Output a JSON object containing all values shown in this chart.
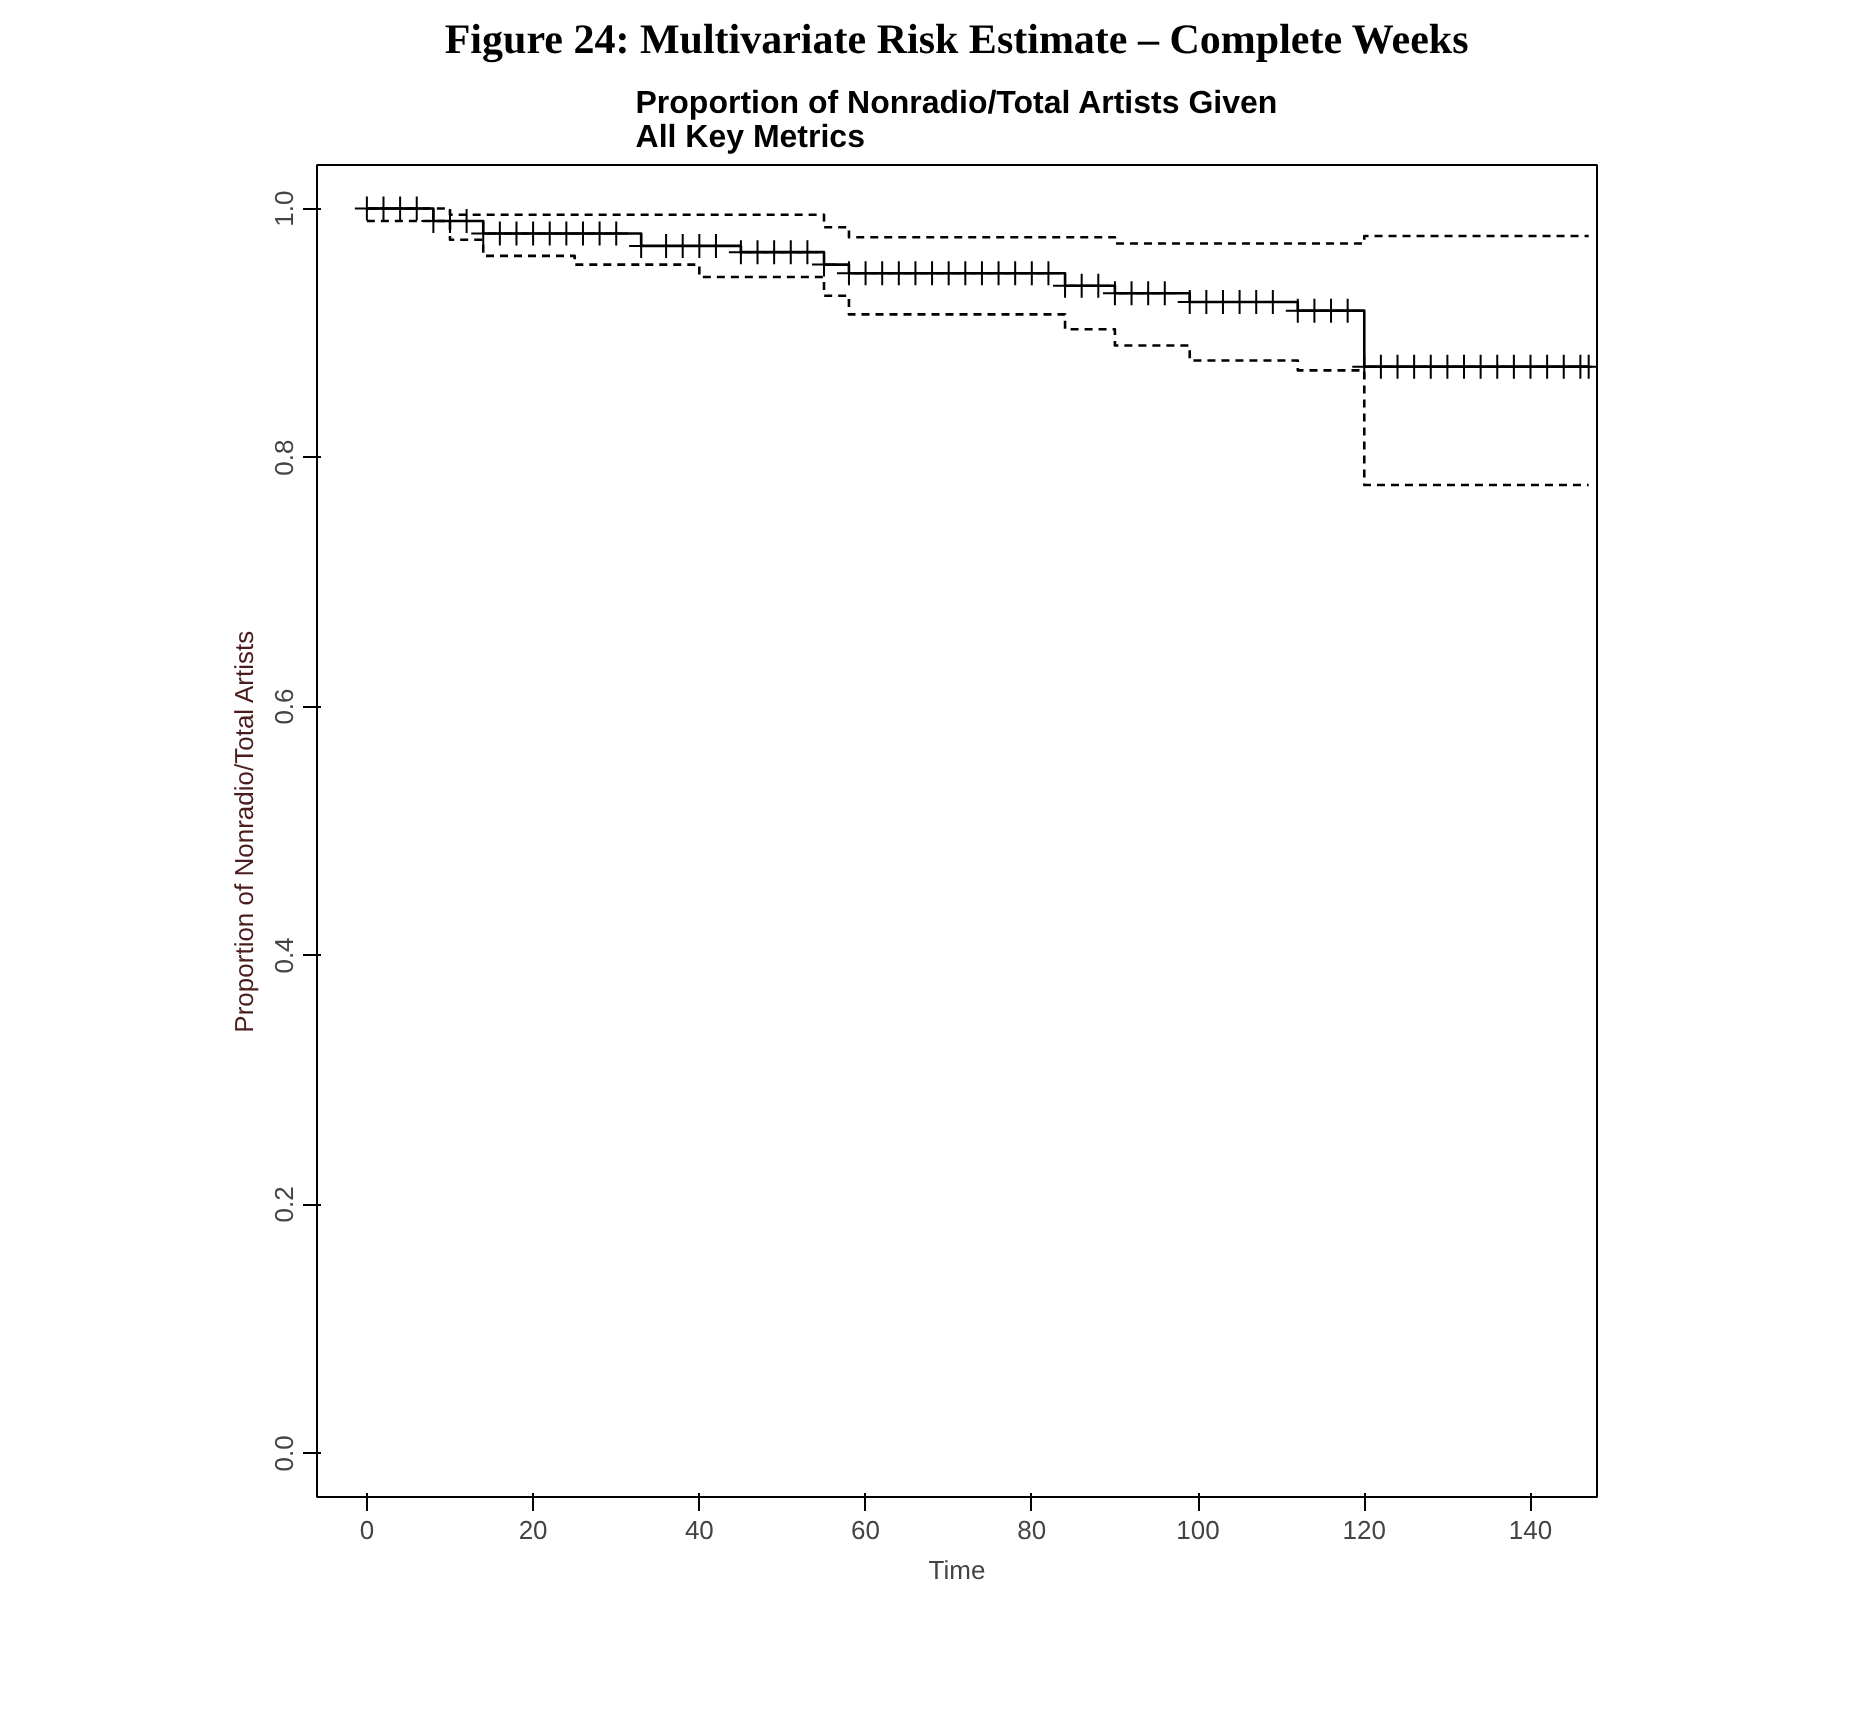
{
  "chart_data": {
    "type": "step",
    "title": "Figure 24: Multivariate Risk Estimate – Complete Weeks",
    "subtitle": "Proportion of Nonradio/Total Artists Given\nAll Key Metrics",
    "xlabel": "Time",
    "ylabel": "Proportion of Nonradio/Total Artists",
    "xlim": [
      -6,
      148
    ],
    "ylim": [
      -0.035,
      1.035
    ],
    "xticks": [
      0,
      20,
      40,
      60,
      80,
      100,
      120,
      140
    ],
    "yticks": [
      {
        "value": 0,
        "label": "0.0"
      },
      {
        "value": 0.2,
        "label": "0.2"
      },
      {
        "value": 0.4,
        "label": "0.4"
      },
      {
        "value": 0.6,
        "label": "0.6"
      },
      {
        "value": 0.8,
        "label": "0.8"
      },
      {
        "value": 1,
        "label": "1.0"
      }
    ],
    "grid": false,
    "series": [
      {
        "color": "#000000",
        "marker": "cross",
        "line_style": "solid",
        "x": [
          0,
          2,
          4,
          6,
          8,
          10,
          12,
          14,
          16,
          18,
          20,
          22,
          24,
          26,
          28,
          30,
          33,
          36,
          38,
          40,
          42,
          45,
          47,
          49,
          51,
          53,
          55,
          58,
          60,
          62,
          64,
          66,
          68,
          70,
          72,
          74,
          76,
          78,
          80,
          82,
          84,
          86,
          88,
          90,
          92,
          94,
          96,
          99,
          101,
          103,
          105,
          107,
          109,
          112,
          114,
          116,
          118,
          120,
          122,
          124,
          126,
          128,
          130,
          132,
          134,
          136,
          138,
          140,
          142,
          144,
          146,
          147
        ],
        "values": [
          1.0,
          1.0,
          1.0,
          1.0,
          0.99,
          0.99,
          0.99,
          0.98,
          0.98,
          0.98,
          0.98,
          0.98,
          0.98,
          0.98,
          0.98,
          0.98,
          0.97,
          0.97,
          0.97,
          0.97,
          0.97,
          0.965,
          0.965,
          0.965,
          0.965,
          0.965,
          0.955,
          0.948,
          0.948,
          0.948,
          0.948,
          0.948,
          0.948,
          0.948,
          0.948,
          0.948,
          0.948,
          0.948,
          0.948,
          0.948,
          0.938,
          0.938,
          0.938,
          0.932,
          0.932,
          0.932,
          0.932,
          0.925,
          0.925,
          0.925,
          0.925,
          0.925,
          0.925,
          0.918,
          0.918,
          0.918,
          0.918,
          0.873,
          0.873,
          0.873,
          0.873,
          0.873,
          0.873,
          0.873,
          0.873,
          0.873,
          0.873,
          0.873,
          0.873,
          0.873,
          0.873,
          0.873
        ]
      },
      {
        "color": "#000000",
        "marker": "none",
        "line_style": "dashed",
        "x": [
          0,
          10,
          55,
          58,
          90,
          120,
          147
        ],
        "values": [
          1.0,
          0.995,
          0.985,
          0.977,
          0.972,
          0.978,
          0.978
        ]
      },
      {
        "color": "#000000",
        "marker": "none",
        "line_style": "dashed",
        "x": [
          0,
          10,
          14,
          25,
          40,
          55,
          58,
          84,
          90,
          99,
          112,
          120,
          147
        ],
        "values": [
          0.99,
          0.975,
          0.962,
          0.955,
          0.945,
          0.93,
          0.915,
          0.903,
          0.89,
          0.878,
          0.87,
          0.778,
          0.778
        ]
      }
    ]
  }
}
